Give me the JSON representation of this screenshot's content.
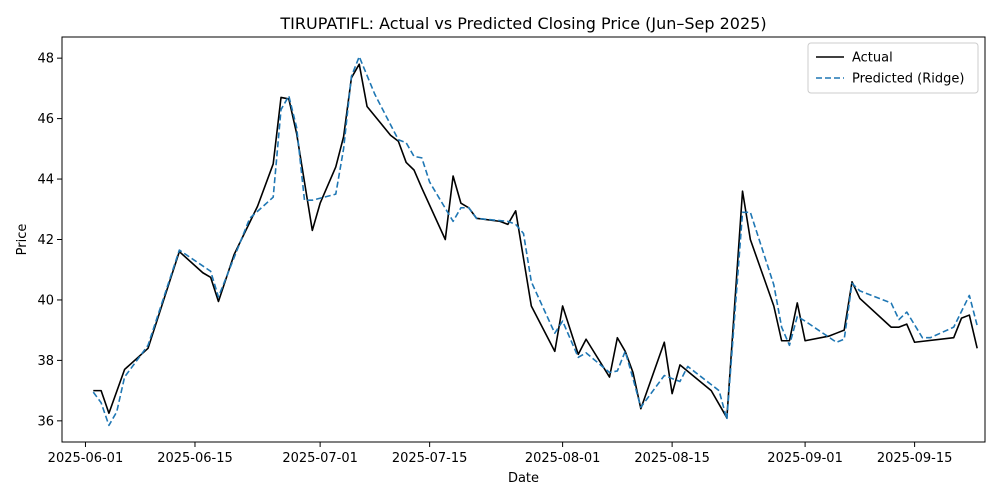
{
  "chart_data": {
    "type": "line",
    "title": "TIRUPATIFL: Actual vs Predicted Closing Price (Jun–Sep 2025)",
    "xlabel": "Date",
    "ylabel": "Price",
    "x_tick_labels": [
      "2025-06-01",
      "2025-06-15",
      "2025-07-01",
      "2025-07-15",
      "2025-08-01",
      "2025-08-15",
      "2025-09-01",
      "2025-09-15"
    ],
    "y_ticks": [
      36,
      38,
      40,
      42,
      44,
      46,
      48
    ],
    "xlim": [
      "2025-05-29",
      "2025-09-24"
    ],
    "ylim": [
      35.3,
      48.7
    ],
    "grid": false,
    "legend_position": "top-right",
    "series": [
      {
        "name": "Actual",
        "style": "solid",
        "color": "#000000",
        "points": [
          [
            "2025-06-02",
            37.0
          ],
          [
            "2025-06-03",
            37.0
          ],
          [
            "2025-06-04",
            36.25
          ],
          [
            "2025-06-06",
            37.7
          ],
          [
            "2025-06-09",
            38.4
          ],
          [
            "2025-06-13",
            41.6
          ],
          [
            "2025-06-16",
            40.9
          ],
          [
            "2025-06-17",
            40.75
          ],
          [
            "2025-06-18",
            39.95
          ],
          [
            "2025-06-20",
            41.5
          ],
          [
            "2025-06-23",
            43.1
          ],
          [
            "2025-06-25",
            44.5
          ],
          [
            "2025-06-26",
            46.7
          ],
          [
            "2025-06-27",
            46.65
          ],
          [
            "2025-06-28",
            45.5
          ],
          [
            "2025-06-30",
            42.3
          ],
          [
            "2025-07-01",
            43.2
          ],
          [
            "2025-07-03",
            44.4
          ],
          [
            "2025-07-04",
            45.4
          ],
          [
            "2025-07-05",
            47.35
          ],
          [
            "2025-07-06",
            47.8
          ],
          [
            "2025-07-07",
            46.4
          ],
          [
            "2025-07-10",
            45.45
          ],
          [
            "2025-07-11",
            45.25
          ],
          [
            "2025-07-12",
            44.55
          ],
          [
            "2025-07-13",
            44.3
          ],
          [
            "2025-07-14",
            43.7
          ],
          [
            "2025-07-17",
            42.0
          ],
          [
            "2025-07-18",
            44.1
          ],
          [
            "2025-07-19",
            43.2
          ],
          [
            "2025-07-20",
            43.05
          ],
          [
            "2025-07-21",
            42.7
          ],
          [
            "2025-07-24",
            42.6
          ],
          [
            "2025-07-25",
            42.5
          ],
          [
            "2025-07-26",
            42.95
          ],
          [
            "2025-07-28",
            39.8
          ],
          [
            "2025-07-31",
            38.3
          ],
          [
            "2025-08-01",
            39.8
          ],
          [
            "2025-08-03",
            38.2
          ],
          [
            "2025-08-04",
            38.7
          ],
          [
            "2025-08-07",
            37.45
          ],
          [
            "2025-08-08",
            38.75
          ],
          [
            "2025-08-09",
            38.3
          ],
          [
            "2025-08-10",
            37.6
          ],
          [
            "2025-08-11",
            36.4
          ],
          [
            "2025-08-14",
            38.6
          ],
          [
            "2025-08-15",
            36.9
          ],
          [
            "2025-08-16",
            37.85
          ],
          [
            "2025-08-20",
            37.0
          ],
          [
            "2025-08-22",
            36.1
          ],
          [
            "2025-08-24",
            43.6
          ],
          [
            "2025-08-25",
            42.0
          ],
          [
            "2025-08-28",
            39.8
          ],
          [
            "2025-08-29",
            38.65
          ],
          [
            "2025-08-30",
            38.65
          ],
          [
            "2025-08-31",
            39.9
          ],
          [
            "2025-09-01",
            38.65
          ],
          [
            "2025-09-04",
            38.8
          ],
          [
            "2025-09-05",
            38.9
          ],
          [
            "2025-09-06",
            39.0
          ],
          [
            "2025-09-07",
            40.6
          ],
          [
            "2025-09-08",
            40.05
          ],
          [
            "2025-09-12",
            39.1
          ],
          [
            "2025-09-13",
            39.1
          ],
          [
            "2025-09-14",
            39.2
          ],
          [
            "2025-09-15",
            38.6
          ],
          [
            "2025-09-20",
            38.75
          ],
          [
            "2025-09-21",
            39.4
          ],
          [
            "2025-09-22",
            39.5
          ],
          [
            "2025-09-23",
            38.4
          ]
        ]
      },
      {
        "name": "Predicted (Ridge)",
        "style": "dashed",
        "color": "#1f77b4",
        "points": [
          [
            "2025-06-02",
            36.95
          ],
          [
            "2025-06-03",
            36.6
          ],
          [
            "2025-06-04",
            35.85
          ],
          [
            "2025-06-05",
            36.3
          ],
          [
            "2025-06-06",
            37.45
          ],
          [
            "2025-06-09",
            38.5
          ],
          [
            "2025-06-13",
            41.65
          ],
          [
            "2025-06-17",
            40.95
          ],
          [
            "2025-06-18",
            40.1
          ],
          [
            "2025-06-20",
            41.4
          ],
          [
            "2025-06-22",
            42.7
          ],
          [
            "2025-06-25",
            43.4
          ],
          [
            "2025-06-26",
            46.3
          ],
          [
            "2025-06-27",
            46.75
          ],
          [
            "2025-06-28",
            45.7
          ],
          [
            "2025-06-29",
            43.3
          ],
          [
            "2025-06-30",
            43.3
          ],
          [
            "2025-07-03",
            43.5
          ],
          [
            "2025-07-04",
            45.0
          ],
          [
            "2025-07-05",
            47.4
          ],
          [
            "2025-07-06",
            48.05
          ],
          [
            "2025-07-08",
            46.8
          ],
          [
            "2025-07-11",
            45.3
          ],
          [
            "2025-07-12",
            45.2
          ],
          [
            "2025-07-13",
            44.75
          ],
          [
            "2025-07-14",
            44.7
          ],
          [
            "2025-07-15",
            43.9
          ],
          [
            "2025-07-18",
            42.6
          ],
          [
            "2025-07-19",
            43.05
          ],
          [
            "2025-07-20",
            43.05
          ],
          [
            "2025-07-21",
            42.7
          ],
          [
            "2025-07-25",
            42.6
          ],
          [
            "2025-07-26",
            42.5
          ],
          [
            "2025-07-27",
            42.2
          ],
          [
            "2025-07-28",
            40.6
          ],
          [
            "2025-07-31",
            38.9
          ],
          [
            "2025-08-01",
            39.3
          ],
          [
            "2025-08-03",
            38.1
          ],
          [
            "2025-08-04",
            38.25
          ],
          [
            "2025-08-07",
            37.6
          ],
          [
            "2025-08-08",
            37.65
          ],
          [
            "2025-08-09",
            38.3
          ],
          [
            "2025-08-10",
            37.4
          ],
          [
            "2025-08-11",
            36.45
          ],
          [
            "2025-08-14",
            37.5
          ],
          [
            "2025-08-16",
            37.3
          ],
          [
            "2025-08-17",
            37.8
          ],
          [
            "2025-08-21",
            37.0
          ],
          [
            "2025-08-22",
            36.05
          ],
          [
            "2025-08-24",
            42.9
          ],
          [
            "2025-08-25",
            42.9
          ],
          [
            "2025-08-28",
            40.5
          ],
          [
            "2025-08-29",
            39.1
          ],
          [
            "2025-08-30",
            38.5
          ],
          [
            "2025-08-31",
            39.45
          ],
          [
            "2025-09-01",
            39.3
          ],
          [
            "2025-09-05",
            38.6
          ],
          [
            "2025-09-06",
            38.7
          ],
          [
            "2025-09-07",
            40.55
          ],
          [
            "2025-09-08",
            40.3
          ],
          [
            "2025-09-12",
            39.9
          ],
          [
            "2025-09-13",
            39.35
          ],
          [
            "2025-09-14",
            39.6
          ],
          [
            "2025-09-16",
            38.75
          ],
          [
            "2025-09-17",
            38.75
          ],
          [
            "2025-09-20",
            39.1
          ],
          [
            "2025-09-22",
            40.15
          ],
          [
            "2025-09-23",
            39.15
          ]
        ]
      }
    ]
  }
}
